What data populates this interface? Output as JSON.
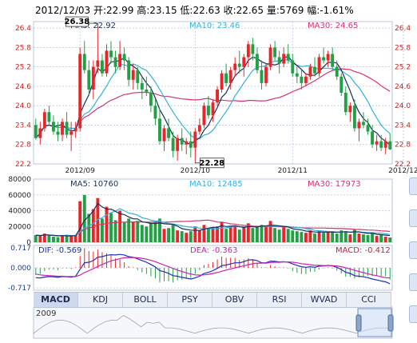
{
  "header": {
    "text": "2012/12/03 开:22.99  高:23.15  低:22.63  收:22.65  量:5769  幅:-1.61%"
  },
  "colors": {
    "up": "#e8262a",
    "down": "#21a045",
    "ma5": "#1a2f5a",
    "ma10": "#34b1e0",
    "ma30": "#d4336f",
    "grid": "#b8c6dc",
    "axis_text": "#d22020"
  },
  "chart_data": [
    {
      "type": "candlestick",
      "panel": "price",
      "ylim": [
        22.2,
        26.6
      ],
      "yticks": [
        "26.4",
        "25.8",
        "25.2",
        "24.6",
        "24.0",
        "23.4",
        "22.8",
        "22.2"
      ],
      "ytick_values": [
        26.4,
        25.8,
        25.2,
        24.6,
        24.0,
        23.4,
        22.8,
        22.2
      ],
      "xtick_labels": [
        "2012/09",
        "2012/10",
        "2012/11",
        "2012/12"
      ],
      "xtick_index": [
        10,
        36,
        58,
        83
      ],
      "legend": [
        {
          "label": "MA5: 22.92"
        },
        {
          "label": "MA10: 23.46"
        },
        {
          "label": "MA30: 24.65"
        }
      ],
      "annotations": [
        {
          "text": "26.38",
          "index": 14
        },
        {
          "text": "22.28",
          "index": 36
        }
      ],
      "candles": [
        [
          23.4,
          23.6,
          22.95,
          23.0
        ],
        [
          23.0,
          23.5,
          22.8,
          23.3
        ],
        [
          23.3,
          23.9,
          23.2,
          23.8
        ],
        [
          23.8,
          24.0,
          23.4,
          23.5
        ],
        [
          23.5,
          23.7,
          23.1,
          23.2
        ],
        [
          23.2,
          23.5,
          22.9,
          23.1
        ],
        [
          23.1,
          23.6,
          22.9,
          23.5
        ],
        [
          23.5,
          23.8,
          23.0,
          23.1
        ],
        [
          23.1,
          23.5,
          22.6,
          23.2
        ],
        [
          23.2,
          23.5,
          23.0,
          23.3
        ],
        [
          23.3,
          25.8,
          23.2,
          25.6
        ],
        [
          25.6,
          26.0,
          25.0,
          25.1
        ],
        [
          25.1,
          25.4,
          24.3,
          24.5
        ],
        [
          24.5,
          25.4,
          24.2,
          25.2
        ],
        [
          25.2,
          26.4,
          25.0,
          25.4
        ],
        [
          25.4,
          25.6,
          24.9,
          25.0
        ],
        [
          25.0,
          25.9,
          24.9,
          25.7
        ],
        [
          25.7,
          26.0,
          25.3,
          25.5
        ],
        [
          25.5,
          25.7,
          25.0,
          25.2
        ],
        [
          25.2,
          26.0,
          25.1,
          25.6
        ],
        [
          25.6,
          25.8,
          25.1,
          25.4
        ],
        [
          25.4,
          25.5,
          24.6,
          24.8
        ],
        [
          24.8,
          25.3,
          24.5,
          25.1
        ],
        [
          25.1,
          25.2,
          24.5,
          24.7
        ],
        [
          24.7,
          24.9,
          24.2,
          24.5
        ],
        [
          24.5,
          24.9,
          24.3,
          24.4
        ],
        [
          24.4,
          24.6,
          23.8,
          24.0
        ],
        [
          24.0,
          24.2,
          23.4,
          23.6
        ],
        [
          23.6,
          23.9,
          22.8,
          22.9
        ],
        [
          22.9,
          23.4,
          22.6,
          23.3
        ],
        [
          23.3,
          23.6,
          22.9,
          23.0
        ],
        [
          23.0,
          23.2,
          22.4,
          22.6
        ],
        [
          22.6,
          23.1,
          22.3,
          23.0
        ],
        [
          23.0,
          23.3,
          22.6,
          22.8
        ],
        [
          22.8,
          23.0,
          22.5,
          22.9
        ],
        [
          22.9,
          23.2,
          22.4,
          22.7
        ],
        [
          22.7,
          23.3,
          22.28,
          23.2
        ],
        [
          23.2,
          23.6,
          23.1,
          23.4
        ],
        [
          23.4,
          24.1,
          23.3,
          24.0
        ],
        [
          24.0,
          24.3,
          23.6,
          23.7
        ],
        [
          23.7,
          24.2,
          23.5,
          24.1
        ],
        [
          24.1,
          24.6,
          24.0,
          24.5
        ],
        [
          24.5,
          25.1,
          24.4,
          25.0
        ],
        [
          25.0,
          25.3,
          24.6,
          24.7
        ],
        [
          24.7,
          25.2,
          24.5,
          25.1
        ],
        [
          25.1,
          25.5,
          24.9,
          25.3
        ],
        [
          25.3,
          25.7,
          25.0,
          25.2
        ],
        [
          25.2,
          25.6,
          24.9,
          25.5
        ],
        [
          25.5,
          26.0,
          25.2,
          25.9
        ],
        [
          25.9,
          26.1,
          25.4,
          25.6
        ],
        [
          25.6,
          25.8,
          25.0,
          25.1
        ],
        [
          25.1,
          25.4,
          24.5,
          24.7
        ],
        [
          24.7,
          25.3,
          24.6,
          25.2
        ],
        [
          25.2,
          25.9,
          25.1,
          25.8
        ],
        [
          25.8,
          26.0,
          25.4,
          25.5
        ],
        [
          25.5,
          25.7,
          25.0,
          25.3
        ],
        [
          25.3,
          25.8,
          25.2,
          25.6
        ],
        [
          25.6,
          25.9,
          25.3,
          25.4
        ],
        [
          25.4,
          25.6,
          24.9,
          25.0
        ],
        [
          25.0,
          25.2,
          24.7,
          24.9
        ],
        [
          24.9,
          25.1,
          24.5,
          24.7
        ],
        [
          24.7,
          25.0,
          24.6,
          24.9
        ],
        [
          24.9,
          25.3,
          24.8,
          25.2
        ],
        [
          25.2,
          25.5,
          24.9,
          25.0
        ],
        [
          25.0,
          25.6,
          24.9,
          25.5
        ],
        [
          25.5,
          25.8,
          25.3,
          25.4
        ],
        [
          25.4,
          25.7,
          25.2,
          25.6
        ],
        [
          25.6,
          25.8,
          25.1,
          25.2
        ],
        [
          25.2,
          25.4,
          24.8,
          24.9
        ],
        [
          24.9,
          25.0,
          24.3,
          24.4
        ],
        [
          24.4,
          24.6,
          23.7,
          23.8
        ],
        [
          23.8,
          24.1,
          23.5,
          24.0
        ],
        [
          24.0,
          24.2,
          23.2,
          23.3
        ],
        [
          23.3,
          23.6,
          22.9,
          23.5
        ],
        [
          23.5,
          23.8,
          23.3,
          23.4
        ],
        [
          23.4,
          23.6,
          23.1,
          23.2
        ],
        [
          23.2,
          23.4,
          22.7,
          22.8
        ],
        [
          22.8,
          23.1,
          22.6,
          22.9
        ],
        [
          22.9,
          23.1,
          22.6,
          22.7
        ],
        [
          22.7,
          23.0,
          22.5,
          22.9
        ],
        [
          22.9,
          23.15,
          22.63,
          22.65
        ]
      ]
    },
    {
      "type": "bar",
      "panel": "volume",
      "ylim": [
        0,
        80000
      ],
      "yticks": [
        "80000",
        "60000",
        "40000",
        "20000",
        "0"
      ],
      "ytick_values": [
        80000,
        60000,
        40000,
        20000,
        0
      ],
      "legend": [
        {
          "label": "MA5: 10760"
        },
        {
          "label": "MA10: 12485"
        },
        {
          "label": "MA30: 17973"
        }
      ],
      "values": [
        9000,
        8000,
        11000,
        8500,
        7000,
        6500,
        9000,
        9500,
        8000,
        9000,
        52000,
        60000,
        36000,
        42000,
        56000,
        30000,
        45000,
        37000,
        28000,
        40000,
        25000,
        30000,
        26000,
        27000,
        22000,
        20000,
        24000,
        26000,
        30000,
        17000,
        18000,
        22000,
        15000,
        14000,
        12000,
        14000,
        20000,
        15000,
        22000,
        18000,
        19000,
        20000,
        26000,
        17000,
        20000,
        21000,
        16000,
        19000,
        24000,
        18000,
        19000,
        22000,
        21000,
        27000,
        18000,
        16000,
        19000,
        17000,
        15000,
        14000,
        13000,
        12000,
        15000,
        11000,
        14000,
        12000,
        13000,
        14000,
        11000,
        15000,
        14000,
        10000,
        16000,
        11000,
        10000,
        9000,
        12000,
        8000,
        9000,
        7000,
        6000
      ]
    },
    {
      "type": "line",
      "panel": "macd",
      "ylim": [
        -0.8,
        0.8
      ],
      "yticks": [
        "0.717",
        "0.000",
        "-0.717"
      ],
      "ytick_values": [
        0.717,
        0.0,
        -0.717
      ],
      "legend": [
        {
          "label": "DIF: -0.569"
        },
        {
          "label": "DEA: -0.363"
        },
        {
          "label": "MACD: -0.412"
        }
      ],
      "series": [
        {
          "values": [
            -0.35,
            -0.36,
            -0.33,
            -0.31,
            -0.32,
            -0.34,
            -0.31,
            -0.32,
            -0.33,
            -0.3,
            -0.05,
            0.18,
            0.2,
            0.26,
            0.38,
            0.4,
            0.45,
            0.47,
            0.46,
            0.48,
            0.46,
            0.4,
            0.38,
            0.32,
            0.26,
            0.2,
            0.12,
            0.03,
            -0.1,
            -0.14,
            -0.2,
            -0.28,
            -0.3,
            -0.34,
            -0.37,
            -0.4,
            -0.36,
            -0.3,
            -0.2,
            -0.16,
            -0.1,
            -0.02,
            0.08,
            0.1,
            0.14,
            0.18,
            0.18,
            0.22,
            0.28,
            0.29,
            0.26,
            0.18,
            0.18,
            0.24,
            0.23,
            0.21,
            0.22,
            0.2,
            0.14,
            0.09,
            0.04,
            0.02,
            0.04,
            0.02,
            0.06,
            0.07,
            0.09,
            0.07,
            0.02,
            -0.06,
            -0.16,
            -0.2,
            -0.28,
            -0.3,
            -0.32,
            -0.35,
            -0.4,
            -0.43,
            -0.47,
            -0.5,
            -0.57
          ]
        },
        {
          "values": [
            -0.22,
            -0.25,
            -0.27,
            -0.28,
            -0.29,
            -0.3,
            -0.3,
            -0.31,
            -0.31,
            -0.31,
            -0.26,
            -0.17,
            -0.1,
            -0.03,
            0.05,
            0.12,
            0.19,
            0.25,
            0.29,
            0.33,
            0.36,
            0.37,
            0.37,
            0.36,
            0.34,
            0.31,
            0.27,
            0.22,
            0.16,
            0.1,
            0.04,
            -0.02,
            -0.08,
            -0.13,
            -0.18,
            -0.22,
            -0.25,
            -0.26,
            -0.25,
            -0.23,
            -0.2,
            -0.17,
            -0.12,
            -0.08,
            -0.04,
            0.0,
            0.04,
            0.07,
            0.11,
            0.15,
            0.17,
            0.17,
            0.17,
            0.19,
            0.2,
            0.2,
            0.21,
            0.21,
            0.2,
            0.18,
            0.15,
            0.13,
            0.11,
            0.09,
            0.09,
            0.08,
            0.08,
            0.08,
            0.07,
            0.04,
            0.0,
            -0.04,
            -0.09,
            -0.13,
            -0.17,
            -0.21,
            -0.25,
            -0.28,
            -0.32,
            -0.35,
            -0.36
          ]
        }
      ]
    }
  ],
  "tabs": [
    "MACD",
    "KDJ",
    "BOLL",
    "PSY",
    "OBV",
    "RSI",
    "WVAD",
    "CCI"
  ],
  "active_tab": "MACD",
  "navigator": {
    "year_label": "2009"
  }
}
